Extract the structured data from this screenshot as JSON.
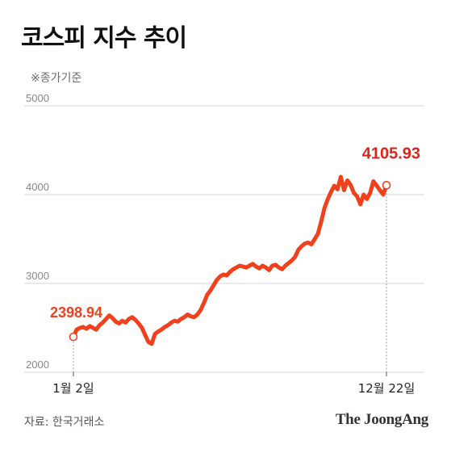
{
  "title": "코스피 지수 추이",
  "subtitle": "※종가기준",
  "source": "자료: 한국거래소",
  "brand": "The JoongAng",
  "colors": {
    "line": "#f0401c",
    "highlight": "#d9261c",
    "grid": "#d6d6d6"
  },
  "chart_data": {
    "type": "line",
    "title": "코스피 지수 추이",
    "y_ticks": [
      2000,
      3000,
      4000,
      5000
    ],
    "ylim": [
      2000,
      5000
    ],
    "x_ticks": [
      "1월 2일",
      "12월 22일"
    ],
    "grid": true,
    "series": [
      {
        "values": [
          2398.94,
          2480,
          2500,
          2510,
          2490,
          2520,
          2500,
          2480,
          2530,
          2560,
          2600,
          2640,
          2610,
          2570,
          2550,
          2580,
          2560,
          2600,
          2620,
          2590,
          2550,
          2500,
          2420,
          2340,
          2320,
          2430,
          2460,
          2480,
          2510,
          2530,
          2560,
          2580,
          2570,
          2600,
          2620,
          2650,
          2630,
          2620,
          2650,
          2700,
          2780,
          2870,
          2920,
          2980,
          3040,
          3080,
          3100,
          3090,
          3130,
          3160,
          3180,
          3200,
          3190,
          3180,
          3200,
          3220,
          3190,
          3170,
          3200,
          3180,
          3150,
          3200,
          3210,
          3180,
          3160,
          3200,
          3230,
          3260,
          3300,
          3380,
          3420,
          3450,
          3460,
          3440,
          3500,
          3560,
          3700,
          3850,
          3950,
          4030,
          4100,
          4060,
          4200,
          4050,
          4160,
          4110,
          4020,
          3980,
          3890,
          4000,
          3950,
          4020,
          4150,
          4100,
          4050,
          4000,
          4105.93
        ]
      }
    ],
    "annotations": [
      {
        "label": "2398.94",
        "value": 2398.94,
        "point": "first"
      },
      {
        "label": "4105.93",
        "value": 4105.93,
        "point": "last"
      }
    ]
  }
}
